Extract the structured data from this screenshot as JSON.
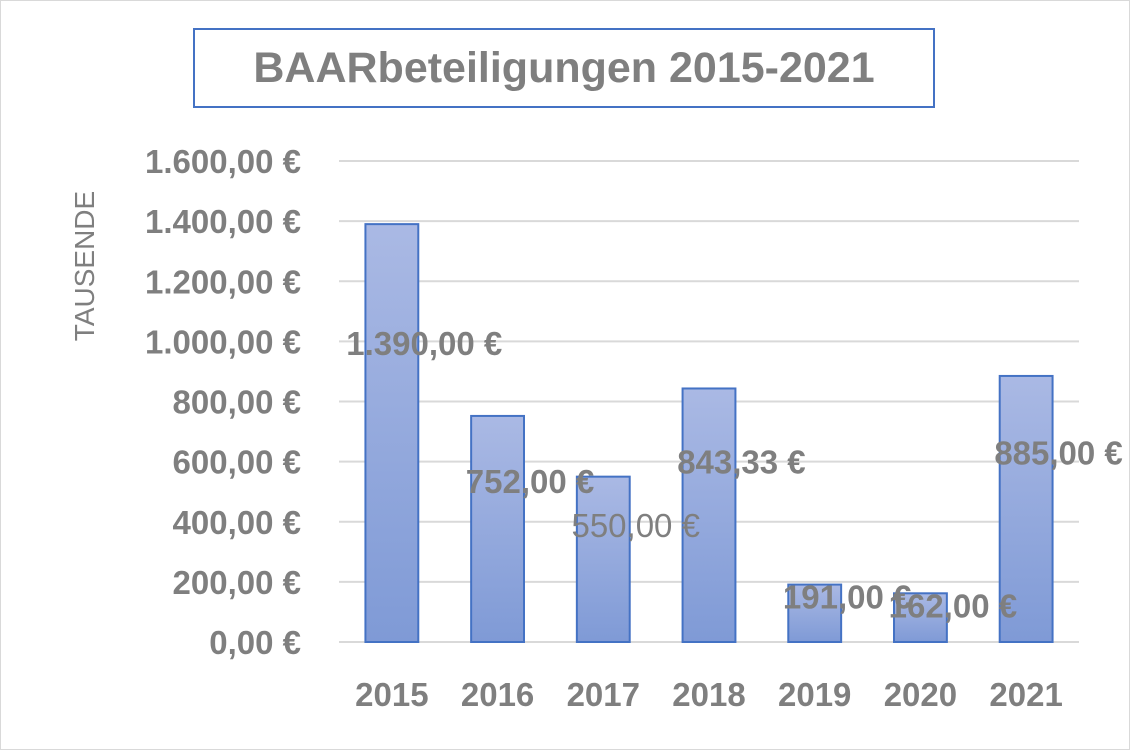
{
  "chart_data": {
    "type": "bar",
    "title": "BAARbeteiligungen 2015-2021",
    "ylabel": "TAUSENDE",
    "xlabel": "",
    "categories": [
      "2015",
      "2016",
      "2017",
      "2018",
      "2019",
      "2020",
      "2021"
    ],
    "values": [
      1390.0,
      752.0,
      550.0,
      843.33,
      191.0,
      162.0,
      885.0
    ],
    "data_labels": [
      "1.390,00 €",
      "752,00 €",
      "550,00 €",
      "843,33 €",
      "191,00 €",
      "162,00 €",
      "885,00 €"
    ],
    "ylim": [
      0,
      1600
    ],
    "y_ticks": [
      0,
      200,
      400,
      600,
      800,
      1000,
      1200,
      1400,
      1600
    ],
    "y_tick_labels": [
      "0,00 €",
      "200,00 €",
      "400,00 €",
      "600,00 €",
      "800,00 €",
      "1.000,00 €",
      "1.200,00 €",
      "1.400,00 €",
      "1.600,00 €"
    ],
    "grid": true,
    "legend": "none"
  },
  "colors": {
    "bar_fill_top": "#aab9e4",
    "bar_fill_bottom": "#7f9ad6",
    "bar_stroke": "#4472c4",
    "text": "#7f7f7f",
    "grid": "#d9d9d9"
  }
}
